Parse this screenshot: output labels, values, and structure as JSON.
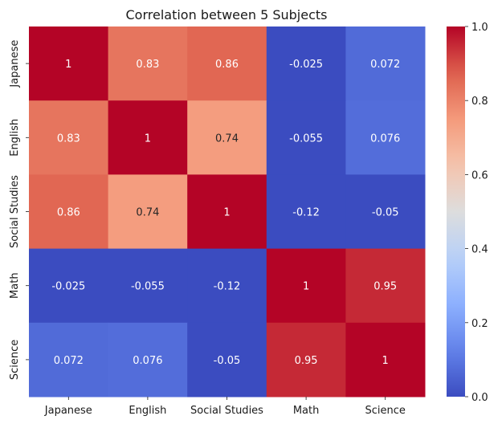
{
  "chart_data": {
    "type": "heatmap",
    "title": "Correlation between 5 Subjects",
    "row_labels": [
      "Japanese",
      "English",
      "Social Studies",
      "Math",
      "Science"
    ],
    "col_labels": [
      "Japanese",
      "English",
      "Social Studies",
      "Math",
      "Science"
    ],
    "values": [
      [
        1,
        0.83,
        0.86,
        -0.025,
        0.072
      ],
      [
        0.83,
        1,
        0.74,
        -0.055,
        0.076
      ],
      [
        0.86,
        0.74,
        1,
        -0.12,
        -0.05
      ],
      [
        -0.025,
        -0.055,
        -0.12,
        1,
        0.95
      ],
      [
        0.072,
        0.076,
        -0.05,
        0.95,
        1
      ]
    ],
    "annotations": [
      [
        "1",
        "0.83",
        "0.86",
        "-0.025",
        "0.072"
      ],
      [
        "0.83",
        "1",
        "0.74",
        "-0.055",
        "0.076"
      ],
      [
        "0.86",
        "0.74",
        "1",
        "-0.12",
        "-0.05"
      ],
      [
        "-0.025",
        "-0.055",
        "-0.12",
        "1",
        "0.95"
      ],
      [
        "0.072",
        "0.076",
        "-0.05",
        "0.95",
        "1"
      ]
    ],
    "colormap": "coolwarm",
    "colorbar": {
      "range": [
        0,
        1
      ],
      "ticks": [
        0.0,
        0.2,
        0.4,
        0.6,
        0.8,
        1.0
      ],
      "tick_labels": [
        "0.0",
        "0.2",
        "0.4",
        "0.6",
        "0.8",
        "1.0"
      ]
    },
    "grid": false,
    "legend": "colorbar-right"
  }
}
